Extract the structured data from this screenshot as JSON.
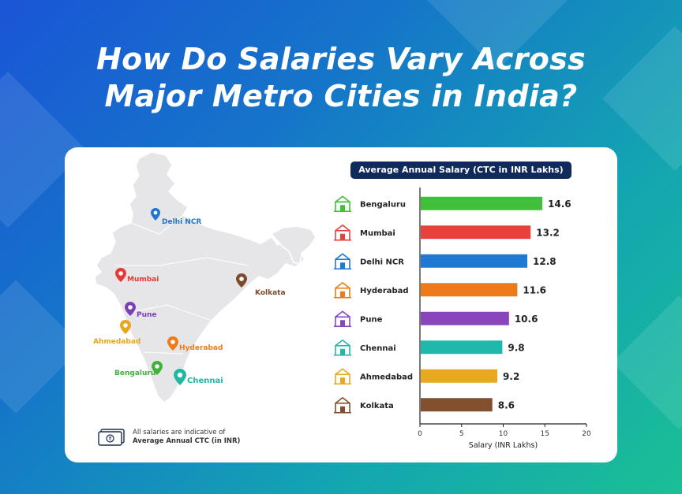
{
  "title": [
    "How Do Salaries Vary Across",
    "Major Metro Cities in India?"
  ],
  "colors": {
    "map_fill": "#e6e6e8",
    "map_stroke": "#ffffff",
    "card": "#ffffff",
    "title_bg": "#102a5c"
  },
  "map": {
    "cities": [
      {
        "name": "Delhi NCR",
        "color": "#1f75d1"
      },
      {
        "name": "Mumbai",
        "color": "#e53935"
      },
      {
        "name": "Kolkata",
        "color": "#7b4a2a"
      },
      {
        "name": "Pune",
        "color": "#7c3fb8"
      },
      {
        "name": "Ahmedabad",
        "color": "#e9a61c"
      },
      {
        "name": "Hyderabad",
        "color": "#ee7a18"
      },
      {
        "name": "Bengaluru",
        "color": "#3fb23b"
      },
      {
        "name": "Chennai",
        "color": "#1fb7a6"
      }
    ]
  },
  "note": {
    "icon": "money-icon",
    "line1": "All salaries are indicative of",
    "line2": "Average Annual CTC (in INR)"
  },
  "chart_data": {
    "type": "bar",
    "orientation": "horizontal",
    "title": "Average Annual Salary (CTC in INR Lakhs)",
    "xlabel": "Salary (INR Lakhs)",
    "ylabel": "",
    "xlim": [
      0,
      20
    ],
    "xticks": [
      0,
      5,
      10,
      15,
      20
    ],
    "categories": [
      "Bengaluru",
      "Mumbai",
      "Delhi NCR",
      "Hyderabad",
      "Pune",
      "Chennai",
      "Ahmedabad",
      "Kolkata"
    ],
    "values": [
      14.6,
      13.2,
      12.8,
      11.6,
      10.6,
      9.8,
      9.2,
      8.6
    ],
    "value_labels": [
      "14.6",
      "13.2",
      "12.8",
      "11.6",
      "10.6",
      "9.8",
      "9.2",
      "8.6"
    ],
    "bar_colors": [
      "#3fbf3a",
      "#e8413b",
      "#1f78d1",
      "#ef7a1a",
      "#8a45bd",
      "#20b8aa",
      "#e8a91e",
      "#82502f"
    ],
    "icons": [
      "temple-icon",
      "gateway-icon",
      "india-gate-icon",
      "charminar-icon",
      "palace-icon",
      "gopuram-icon",
      "mosque-icon",
      "bridge-icon"
    ],
    "grid": false,
    "legend": "none"
  }
}
